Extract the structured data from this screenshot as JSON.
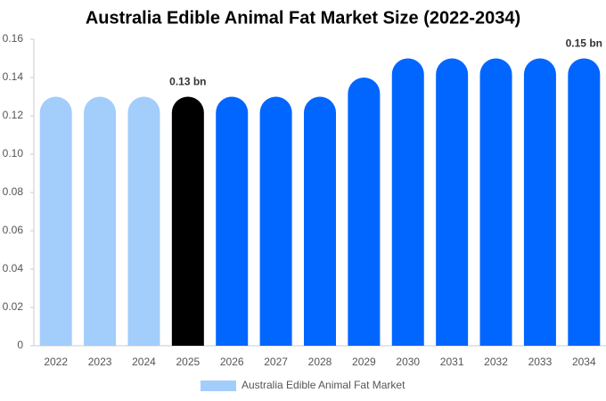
{
  "chart_data": {
    "type": "bar",
    "title": "Australia Edible Animal Fat Market Size (2022-2034)",
    "categories": [
      "2022",
      "2023",
      "2024",
      "2025",
      "2026",
      "2027",
      "2028",
      "2029",
      "2030",
      "2031",
      "2032",
      "2033",
      "2034"
    ],
    "series": [
      {
        "name": "Australia Edible Animal Fat Market",
        "color": "#a3cdfb",
        "values": [
          0.13,
          0.13,
          0.13,
          0.13,
          0.13,
          0.13,
          0.13,
          0.14,
          0.15,
          0.15,
          0.15,
          0.15,
          0.15
        ],
        "value_labels": [
          null,
          null,
          null,
          "0.13 bn",
          null,
          null,
          null,
          null,
          null,
          null,
          null,
          null,
          "0.15 bn"
        ],
        "bar_colors": [
          "#a3cdfb",
          "#a3cdfb",
          "#a3cdfb",
          "#000000",
          "#0066ff",
          "#0066ff",
          "#0066ff",
          "#0066ff",
          "#0066ff",
          "#0066ff",
          "#0066ff",
          "#0066ff",
          "#0066ff"
        ]
      }
    ],
    "ylim": [
      0,
      0.16
    ],
    "yticks": [
      0,
      0.02,
      0.04,
      0.06,
      0.08,
      {
        "value": 0.1,
        "label": "0.10"
      },
      0.12,
      0.14,
      0.16
    ],
    "grid": false
  }
}
